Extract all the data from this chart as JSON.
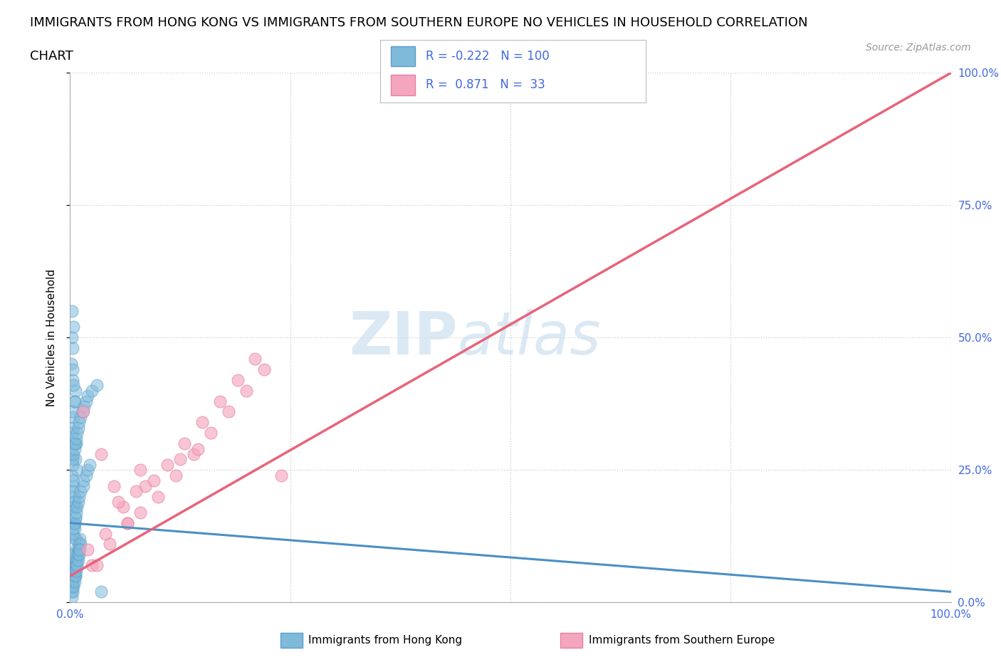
{
  "title_line1": "IMMIGRANTS FROM HONG KONG VS IMMIGRANTS FROM SOUTHERN EUROPE NO VEHICLES IN HOUSEHOLD CORRELATION",
  "title_line2": "CHART",
  "source": "Source: ZipAtlas.com",
  "ylabel": "No Vehicles in Household",
  "xlim": [
    0,
    100
  ],
  "ylim": [
    0,
    100
  ],
  "x_ticks": [
    0,
    25,
    50,
    75,
    100
  ],
  "y_ticks": [
    0,
    25,
    50,
    75,
    100
  ],
  "x_tick_labels": [
    "0.0%",
    "",
    "",
    "",
    "100.0%"
  ],
  "y_tick_labels": [
    "0.0%",
    "25.0%",
    "50.0%",
    "75.0%",
    "100.0%"
  ],
  "hk_color": "#7fbadb",
  "hk_edge_color": "#5b9ec9",
  "se_color": "#f4a6be",
  "se_edge_color": "#e87fa3",
  "hk_R": -0.222,
  "hk_N": 100,
  "se_R": 0.871,
  "se_N": 33,
  "hk_trend_color": "#4a90c4",
  "se_trend_color": "#e8637a",
  "legend_label_hk": "Immigrants from Hong Kong",
  "legend_label_se": "Immigrants from Southern Europe",
  "watermark_part1": "ZIP",
  "watermark_part2": "atlas",
  "title_fontsize": 13,
  "tick_label_color": "#4169E1",
  "grid_color": "#cccccc",
  "hk_scatter_x": [
    0.4,
    0.5,
    0.6,
    0.3,
    0.7,
    0.2,
    0.8,
    0.4,
    0.5,
    0.1,
    0.3,
    0.6,
    0.4,
    0.5,
    0.7,
    0.2,
    0.3,
    0.4,
    0.5,
    0.6,
    0.3,
    0.4,
    0.5,
    0.6,
    0.2,
    0.3,
    0.4,
    0.5,
    0.7,
    0.3,
    0.2,
    0.4,
    0.5,
    0.6,
    0.3,
    0.4,
    0.5,
    0.3,
    0.4,
    0.5,
    0.2,
    0.3,
    0.4,
    0.5,
    0.6,
    0.7,
    0.8,
    0.9,
    1.0,
    1.1,
    0.2,
    0.3,
    0.4,
    0.5,
    0.6,
    0.7,
    0.8,
    0.9,
    1.0,
    1.2,
    0.3,
    0.4,
    0.5,
    0.6,
    0.7,
    0.8,
    0.9,
    1.0,
    1.2,
    1.5,
    0.2,
    0.3,
    0.4,
    0.5,
    0.6,
    0.7,
    0.8,
    0.9,
    1.0,
    1.1,
    1.5,
    1.8,
    2.0,
    2.2,
    0.3,
    0.4,
    0.5,
    0.6,
    0.7,
    0.8,
    0.9,
    1.0,
    1.2,
    1.4,
    1.6,
    1.8,
    2.0,
    2.5,
    3.0,
    3.5
  ],
  "hk_scatter_y": [
    35,
    38,
    40,
    32,
    30,
    28,
    25,
    22,
    20,
    45,
    42,
    18,
    15,
    12,
    10,
    50,
    48,
    8,
    6,
    5,
    36,
    33,
    30,
    27,
    24,
    21,
    18,
    15,
    12,
    9,
    55,
    52,
    14,
    16,
    44,
    41,
    38,
    26,
    23,
    19,
    3,
    4,
    5,
    6,
    7,
    8,
    9,
    10,
    11,
    12,
    2,
    3,
    4,
    5,
    6,
    7,
    8,
    9,
    10,
    11,
    13,
    14,
    15,
    16,
    17,
    18,
    19,
    20,
    21,
    22,
    1,
    2,
    3,
    4,
    5,
    6,
    7,
    8,
    9,
    10,
    23,
    24,
    25,
    26,
    27,
    28,
    29,
    30,
    31,
    32,
    33,
    34,
    35,
    36,
    37,
    38,
    39,
    40,
    41,
    2
  ],
  "se_scatter_x": [
    1.5,
    2.0,
    3.5,
    5.0,
    6.5,
    8.0,
    10.0,
    12.0,
    14.0,
    16.0,
    18.0,
    20.0,
    22.0,
    24.0,
    2.5,
    4.0,
    6.0,
    8.5,
    11.0,
    13.0,
    15.0,
    17.0,
    19.0,
    21.0,
    5.5,
    7.5,
    9.5,
    12.5,
    14.5,
    3.0,
    4.5,
    6.5,
    8.0
  ],
  "se_scatter_y": [
    36,
    10,
    28,
    22,
    15,
    17,
    20,
    24,
    28,
    32,
    36,
    40,
    44,
    24,
    7,
    13,
    18,
    22,
    26,
    30,
    34,
    38,
    42,
    46,
    19,
    21,
    23,
    27,
    29,
    7,
    11,
    15,
    25
  ],
  "hk_trend_x0": 0,
  "hk_trend_x1": 100,
  "hk_trend_y0": 15,
  "hk_trend_y1": 2,
  "se_trend_x0": 0,
  "se_trend_x1": 100,
  "se_trend_y0": 5,
  "se_trend_y1": 100
}
